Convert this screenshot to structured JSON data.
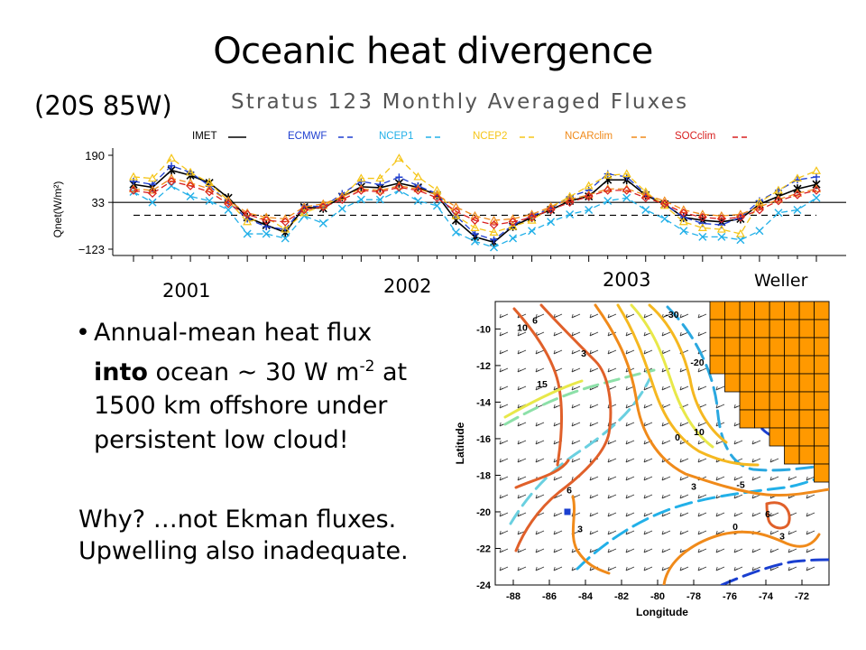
{
  "slide": {
    "title": "Oceanic heat divergence",
    "location": "(20S 85W)",
    "credit": "Weller",
    "bullet": {
      "part1": "Annual-mean heat flux ",
      "emphasis": "into",
      "part2": " ocean ~ 30 W m",
      "exponent": "-2",
      "part3": " at 1500 km offshore under persistent low cloud!"
    },
    "why_line1": "Why? …not Ekman fluxes.",
    "why_line2": "Upwelling also inadequate."
  },
  "chart_data": [
    {
      "type": "line",
      "title": "Stratus 123 Monthly Averaged Fluxes",
      "ylabel": "Qnet(W/m²)",
      "xlabel": "",
      "ylim": [
        -123,
        190
      ],
      "yticks": [
        "190",
        "33",
        "−123"
      ],
      "years": [
        "2001",
        "2002",
        "2003"
      ],
      "reference_lines": {
        "solid": 33,
        "dashed": -10
      },
      "legend": [
        {
          "name": "IMET",
          "color": "#000000"
        },
        {
          "name": "ECMWF",
          "color": "#1f3fd0"
        },
        {
          "name": "NCEP1",
          "color": "#22b0e8"
        },
        {
          "name": "NCEP2",
          "color": "#f5c518"
        },
        {
          "name": "NCARclim",
          "color": "#f08a1a"
        },
        {
          "name": "SOCclim",
          "color": "#d82020"
        }
      ],
      "series": [
        {
          "name": "IMET",
          "color": "#000000",
          "values": [
            93,
            83,
            140,
            123,
            98,
            48,
            -17,
            -43,
            -67,
            17,
            13,
            52,
            85,
            82,
            97,
            83,
            57,
            -27,
            -82,
            -100,
            -47,
            -17,
            8,
            38,
            53,
            108,
            108,
            57,
            27,
            -17,
            -27,
            -32,
            -22,
            27,
            53,
            78,
            93
          ]
        },
        {
          "name": "ECMWF",
          "color": "#1f3fd0",
          "values": [
            103,
            93,
            155,
            133,
            88,
            33,
            -22,
            -48,
            -57,
            22,
            18,
            62,
            103,
            92,
            117,
            88,
            62,
            -12,
            -72,
            -92,
            -42,
            -12,
            13,
            52,
            73,
            128,
            118,
            62,
            27,
            -17,
            -37,
            -42,
            -17,
            38,
            73,
            108,
            118
          ]
        },
        {
          "name": "NCEP1",
          "color": "#22b0e8",
          "values": [
            68,
            33,
            88,
            53,
            38,
            8,
            -72,
            -72,
            -87,
            -12,
            -37,
            12,
            42,
            42,
            73,
            38,
            22,
            -67,
            -97,
            -117,
            -87,
            -62,
            -32,
            -7,
            8,
            38,
            48,
            8,
            -22,
            -62,
            -82,
            -82,
            -92,
            -62,
            -2,
            8,
            48
          ]
        },
        {
          "name": "NCEP2",
          "color": "#f5c518",
          "values": [
            118,
            113,
            180,
            133,
            98,
            38,
            -32,
            -17,
            -57,
            -2,
            22,
            52,
            113,
            113,
            180,
            118,
            73,
            -12,
            -52,
            -67,
            -47,
            -27,
            18,
            52,
            88,
            123,
            128,
            68,
            22,
            -32,
            -52,
            -57,
            -72,
            33,
            73,
            113,
            138
          ]
        },
        {
          "name": "NCARclim",
          "color": "#f08a1a",
          "values": [
            78,
            73,
            113,
            98,
            78,
            38,
            -2,
            -17,
            -22,
            18,
            28,
            52,
            78,
            73,
            88,
            78,
            58,
            18,
            -12,
            -27,
            -22,
            -7,
            18,
            43,
            58,
            78,
            78,
            58,
            38,
            8,
            -7,
            -12,
            -7,
            18,
            43,
            63,
            78
          ]
        },
        {
          "name": "SOCclim",
          "color": "#d82020",
          "values": [
            73,
            63,
            103,
            88,
            68,
            28,
            -7,
            -27,
            -32,
            8,
            18,
            42,
            73,
            68,
            83,
            73,
            48,
            3,
            -27,
            -42,
            -32,
            -17,
            8,
            33,
            53,
            73,
            73,
            48,
            28,
            -2,
            -17,
            -22,
            -17,
            8,
            38,
            58,
            73
          ]
        }
      ]
    },
    {
      "type": "contour",
      "title": "",
      "xlabel": "Longitude",
      "ylabel": "Latitude",
      "xlim": [
        -89,
        -70.5
      ],
      "ylim": [
        -24,
        -8.5
      ],
      "xticks": [
        -88,
        -86,
        -84,
        -82,
        -80,
        -78,
        -76,
        -74,
        -72
      ],
      "yticks": [
        -10,
        -12,
        -14,
        -16,
        -18,
        -20,
        -22,
        -24
      ],
      "contour_labels": [
        {
          "text": "10",
          "lon": -87.5,
          "lat": -10.1
        },
        {
          "text": "6",
          "lon": -86.8,
          "lat": -9.7
        },
        {
          "text": "3",
          "lon": -84.1,
          "lat": -11.5
        },
        {
          "text": "15",
          "lon": -86.4,
          "lat": -13.2
        },
        {
          "text": "-30",
          "lon": -79.2,
          "lat": -9.4
        },
        {
          "text": "-20",
          "lon": -77.8,
          "lat": -12.0
        },
        {
          "text": "10",
          "lon": -77.7,
          "lat": -15.8
        },
        {
          "text": "0",
          "lon": -78.9,
          "lat": -16.1
        },
        {
          "text": "3",
          "lon": -78.0,
          "lat": -18.8
        },
        {
          "text": "-5",
          "lon": -75.4,
          "lat": -18.7
        },
        {
          "text": "6",
          "lon": -84.9,
          "lat": -19.0
        },
        {
          "text": "3",
          "lon": -84.3,
          "lat": -21.1
        },
        {
          "text": "6",
          "lon": -73.9,
          "lat": -20.3
        },
        {
          "text": "0",
          "lon": -75.7,
          "lat": -21.0
        },
        {
          "text": "3",
          "lon": -73.1,
          "lat": -21.5
        }
      ],
      "buoy": {
        "lon": -85.0,
        "lat": -20.0,
        "color": "#1a3fd0"
      },
      "land_color": "#ff9900",
      "colors": {
        "warm": [
          "#e0602a",
          "#f08a1a",
          "#f5b820",
          "#e8e84a"
        ],
        "cool": [
          "#8ce0a8",
          "#6ad0e0",
          "#2aa8e0",
          "#1a3fd0"
        ]
      }
    }
  ]
}
